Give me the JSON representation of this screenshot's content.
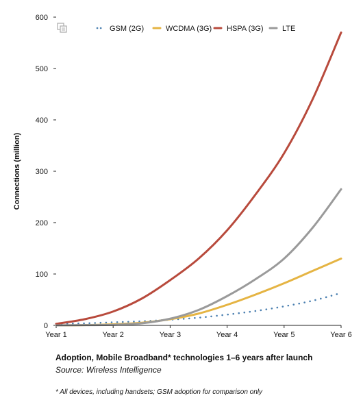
{
  "caption": {
    "title": "Adoption, Mobile Broadband* technologies 1–6 years after launch",
    "source": "Source: Wireless Intelligence",
    "footnote": "* All devices, including handsets; GSM adoption for comparison only"
  },
  "chart_data": {
    "type": "line",
    "title": "",
    "xlabel": "",
    "ylabel": "Connections (million)",
    "categories": [
      "Year 1",
      "Year 2",
      "Year 3",
      "Year 4",
      "Year 5",
      "Year 6"
    ],
    "ylim": [
      0,
      600
    ],
    "yticks": [
      0,
      100,
      200,
      300,
      400,
      500,
      600
    ],
    "grid": false,
    "legend_placement": "top",
    "series": [
      {
        "name": "GSM (2G)",
        "color": "#4a7fb0",
        "style": "dotted",
        "x": [
          1,
          1.5,
          2,
          2.5,
          3,
          3.5,
          4,
          4.5,
          5,
          5.5,
          6
        ],
        "values": [
          3,
          4,
          6,
          8,
          11,
          15,
          21,
          28,
          37,
          48,
          63
        ]
      },
      {
        "name": "WCDMA (3G)",
        "color": "#e5b443",
        "style": "solid",
        "x": [
          1,
          1.5,
          2,
          2.5,
          3,
          3.5,
          4,
          4.5,
          5,
          5.5,
          6
        ],
        "values": [
          0,
          0.5,
          2,
          5,
          12,
          23,
          40,
          60,
          82,
          106,
          130
        ]
      },
      {
        "name": "HSPA (3G)",
        "color": "#b84a3c",
        "style": "solid",
        "x": [
          1,
          1.5,
          2,
          2.5,
          3,
          3.5,
          4,
          4.5,
          5,
          5.5,
          6
        ],
        "values": [
          3,
          12,
          27,
          52,
          88,
          130,
          185,
          255,
          335,
          440,
          570
        ]
      },
      {
        "name": "LTE",
        "color": "#9a9a9a",
        "style": "solid",
        "x": [
          1,
          1.5,
          2,
          2.5,
          3,
          3.5,
          4,
          4.5,
          5,
          5.5,
          6
        ],
        "values": [
          0,
          0.5,
          1,
          4,
          13,
          30,
          57,
          90,
          130,
          190,
          265
        ]
      }
    ]
  }
}
